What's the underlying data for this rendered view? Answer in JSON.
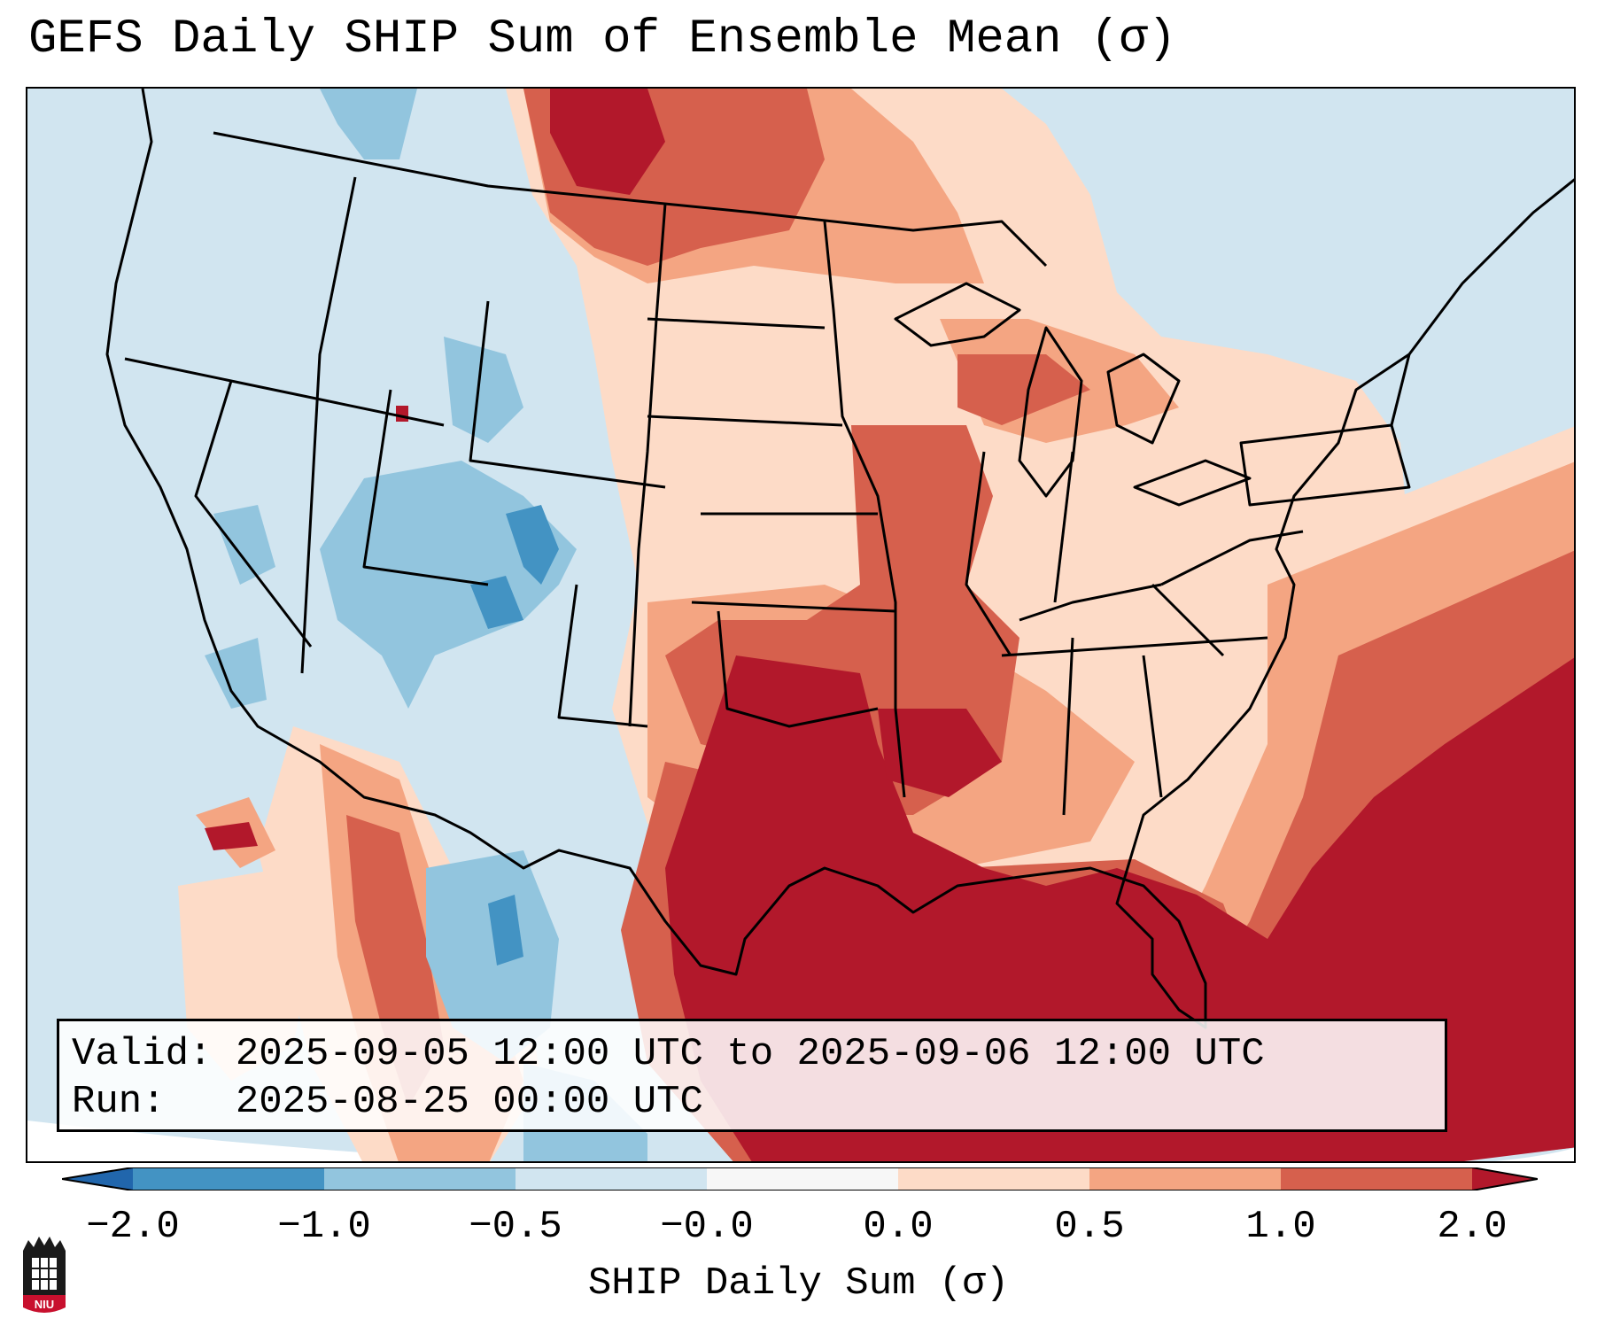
{
  "title": "GEFS Daily SHIP Sum of Ensemble Mean (σ)",
  "info": {
    "valid_label": "Valid:",
    "valid_value": "2025-09-05 12:00 UTC to 2025-09-06 12:00 UTC",
    "run_label": "Run:",
    "run_value": "2025-08-25 00:00 UTC"
  },
  "colorbar": {
    "label": "SHIP Daily Sum (σ)",
    "ticks": [
      "−2.0",
      "−1.0",
      "−0.5",
      "−0.0",
      "0.0",
      "0.5",
      "1.0",
      "2.0"
    ],
    "bins": [
      {
        "range": "< -2.0",
        "color": "#2166ac"
      },
      {
        "range": "-2.0 to -1.0",
        "color": "#4393c3"
      },
      {
        "range": "-1.0 to -0.5",
        "color": "#92c5de"
      },
      {
        "range": "-0.5 to 0.0",
        "color": "#d1e5f0"
      },
      {
        "range": "0.0",
        "color": "#f7f7f7"
      },
      {
        "range": "0.0 to 0.5",
        "color": "#fddbc7"
      },
      {
        "range": "0.5 to 1.0",
        "color": "#f4a582"
      },
      {
        "range": "1.0 to 2.0",
        "color": "#d6604d"
      },
      {
        "range": "> 2.0",
        "color": "#b2182b"
      }
    ]
  },
  "logo": {
    "text": "NIU",
    "color": "#c8102e"
  }
}
